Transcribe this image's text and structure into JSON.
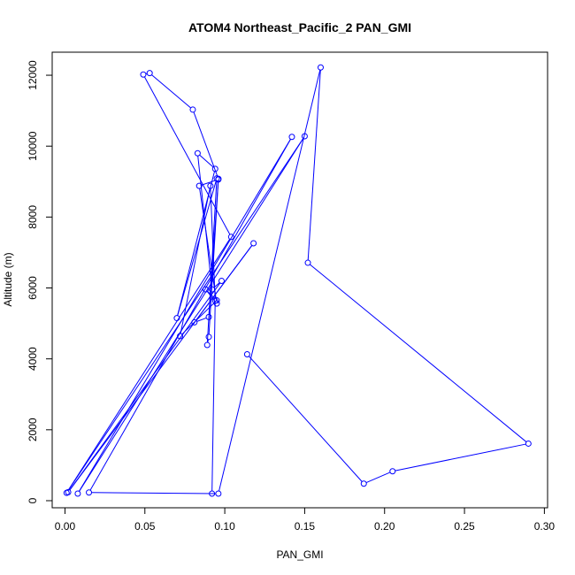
{
  "chart_data": {
    "type": "line",
    "title": "ATOM4 Northeast_Pacific_2 PAN_GMI",
    "xlabel": "PAN_GMI",
    "ylabel": "Altitude (m)",
    "xlim": [
      -0.008,
      0.302
    ],
    "ylim": [
      -200,
      12650
    ],
    "x_ticks": [
      0.0,
      0.05,
      0.1,
      0.15,
      0.2,
      0.25,
      0.3
    ],
    "x_tick_labels": [
      "0.00",
      "0.05",
      "0.10",
      "0.15",
      "0.20",
      "0.25",
      "0.30"
    ],
    "y_ticks": [
      0,
      2000,
      4000,
      6000,
      8000,
      10000,
      12000
    ],
    "y_tick_labels": [
      "0",
      "2000",
      "4000",
      "6000",
      "8000",
      "10000",
      "12000"
    ],
    "grid": false,
    "series_color": "#0000ff",
    "series": [
      {
        "x": [
          0.114,
          0.187,
          0.205,
          0.29,
          0.152,
          0.16,
          0.096,
          0.015,
          0.142,
          0.008,
          0.15,
          0.001,
          0.104,
          0.049,
          0.053,
          0.08,
          0.096,
          0.09,
          0.081,
          0.118,
          0.002,
          0.098,
          0.092,
          0.083,
          0.094,
          0.07,
          0.095,
          0.089,
          0.09,
          0.096,
          0.084,
          0.095,
          0.088,
          0.095,
          0.072,
          0.091,
          0.094,
          0.092
        ],
        "y": [
          4130,
          480,
          830,
          1610,
          6710,
          12220,
          200,
          230,
          10260,
          200,
          10280,
          220,
          7440,
          12020,
          12060,
          11030,
          9080,
          5180,
          5030,
          7260,
          240,
          6200,
          5960,
          9800,
          9360,
          5150,
          9090,
          4390,
          4620,
          9060,
          8880,
          5560,
          5960,
          5650,
          4640,
          8880,
          5640,
          200
        ]
      }
    ]
  }
}
